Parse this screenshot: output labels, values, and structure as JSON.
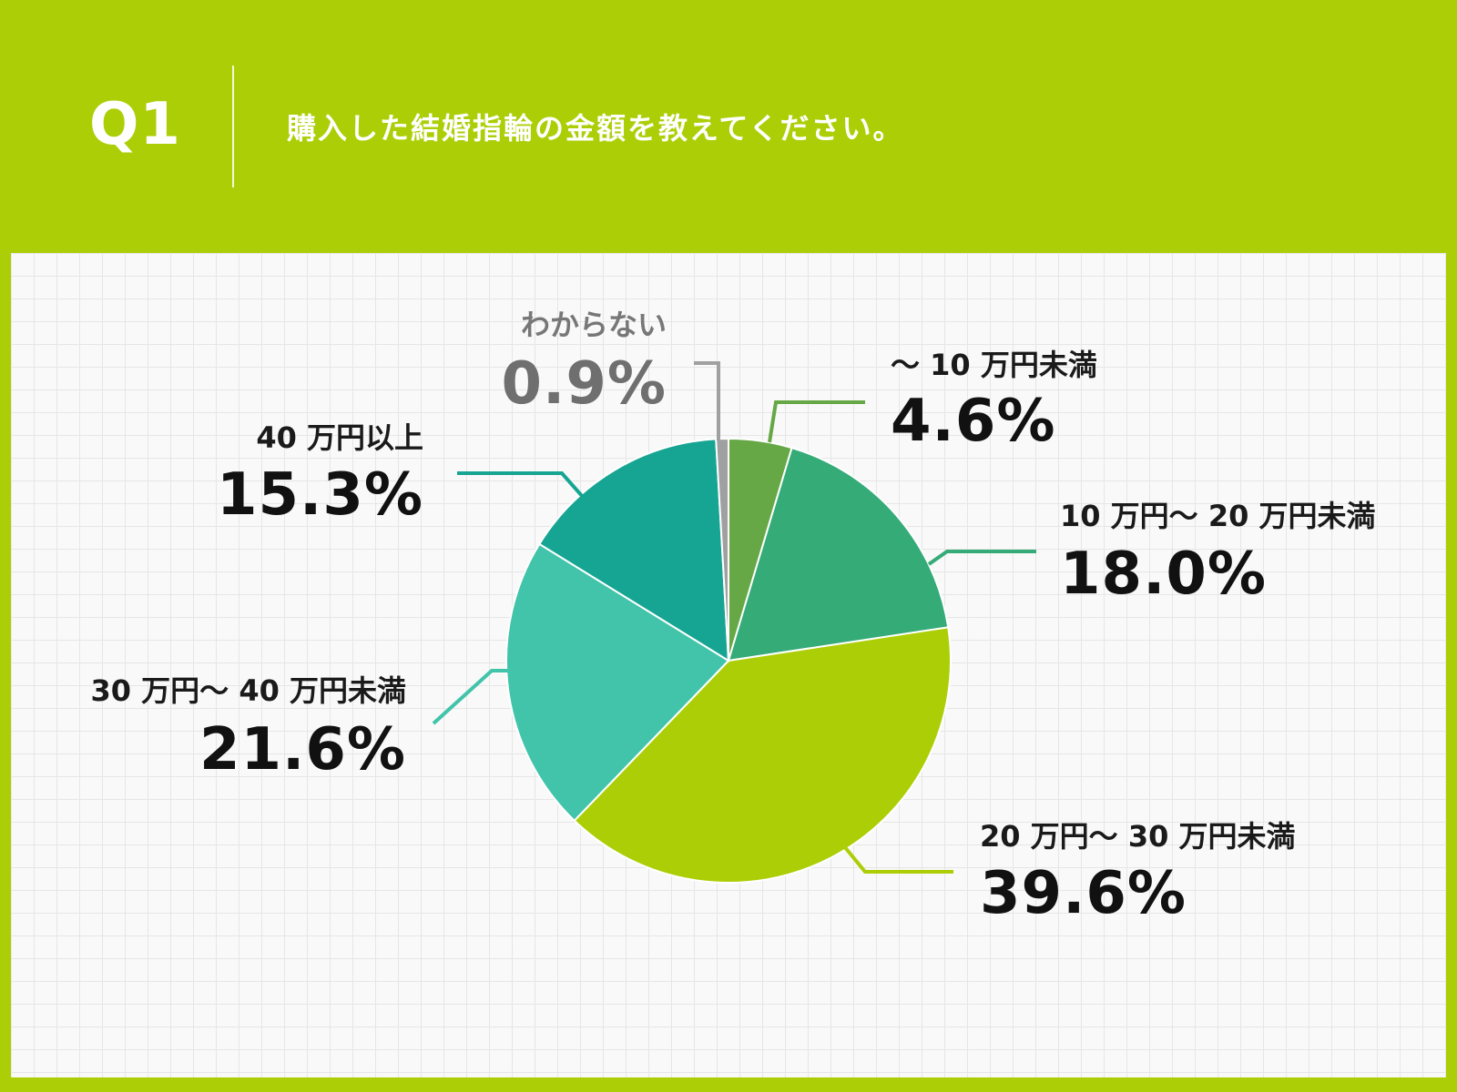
{
  "header": {
    "q_number": "Q1",
    "question": "購入した結婚指輪の金額を教えてください。"
  },
  "colors": {
    "background": "#acce06",
    "panel": "#f9f9f9",
    "grid": "#e6e6e6"
  },
  "chart_data": {
    "type": "pie",
    "start": "12 o'clock, clockwise",
    "slices": [
      {
        "label": "〜 10 万円未満",
        "value": 4.6,
        "value_label": "4.6%",
        "color": "#66a845",
        "label_color": "#1a1a1a"
      },
      {
        "label": "10 万円〜 20 万円未満",
        "value": 18.0,
        "value_label": "18.0%",
        "color": "#35ab78",
        "label_color": "#1a1a1a"
      },
      {
        "label": "20 万円〜 30 万円未満",
        "value": 39.6,
        "value_label": "39.6%",
        "color": "#acce06",
        "label_color": "#1a1a1a"
      },
      {
        "label": "30 万円〜 40 万円未満",
        "value": 21.6,
        "value_label": "21.6%",
        "color": "#41c4aa",
        "label_color": "#1a1a1a"
      },
      {
        "label": "40 万円以上",
        "value": 15.3,
        "value_label": "15.3%",
        "color": "#17a593",
        "label_color": "#1a1a1a"
      },
      {
        "label": "わからない",
        "value": 0.9,
        "value_label": "0.9%",
        "color": "#a0a0a0",
        "label_color": "#777777"
      }
    ]
  }
}
